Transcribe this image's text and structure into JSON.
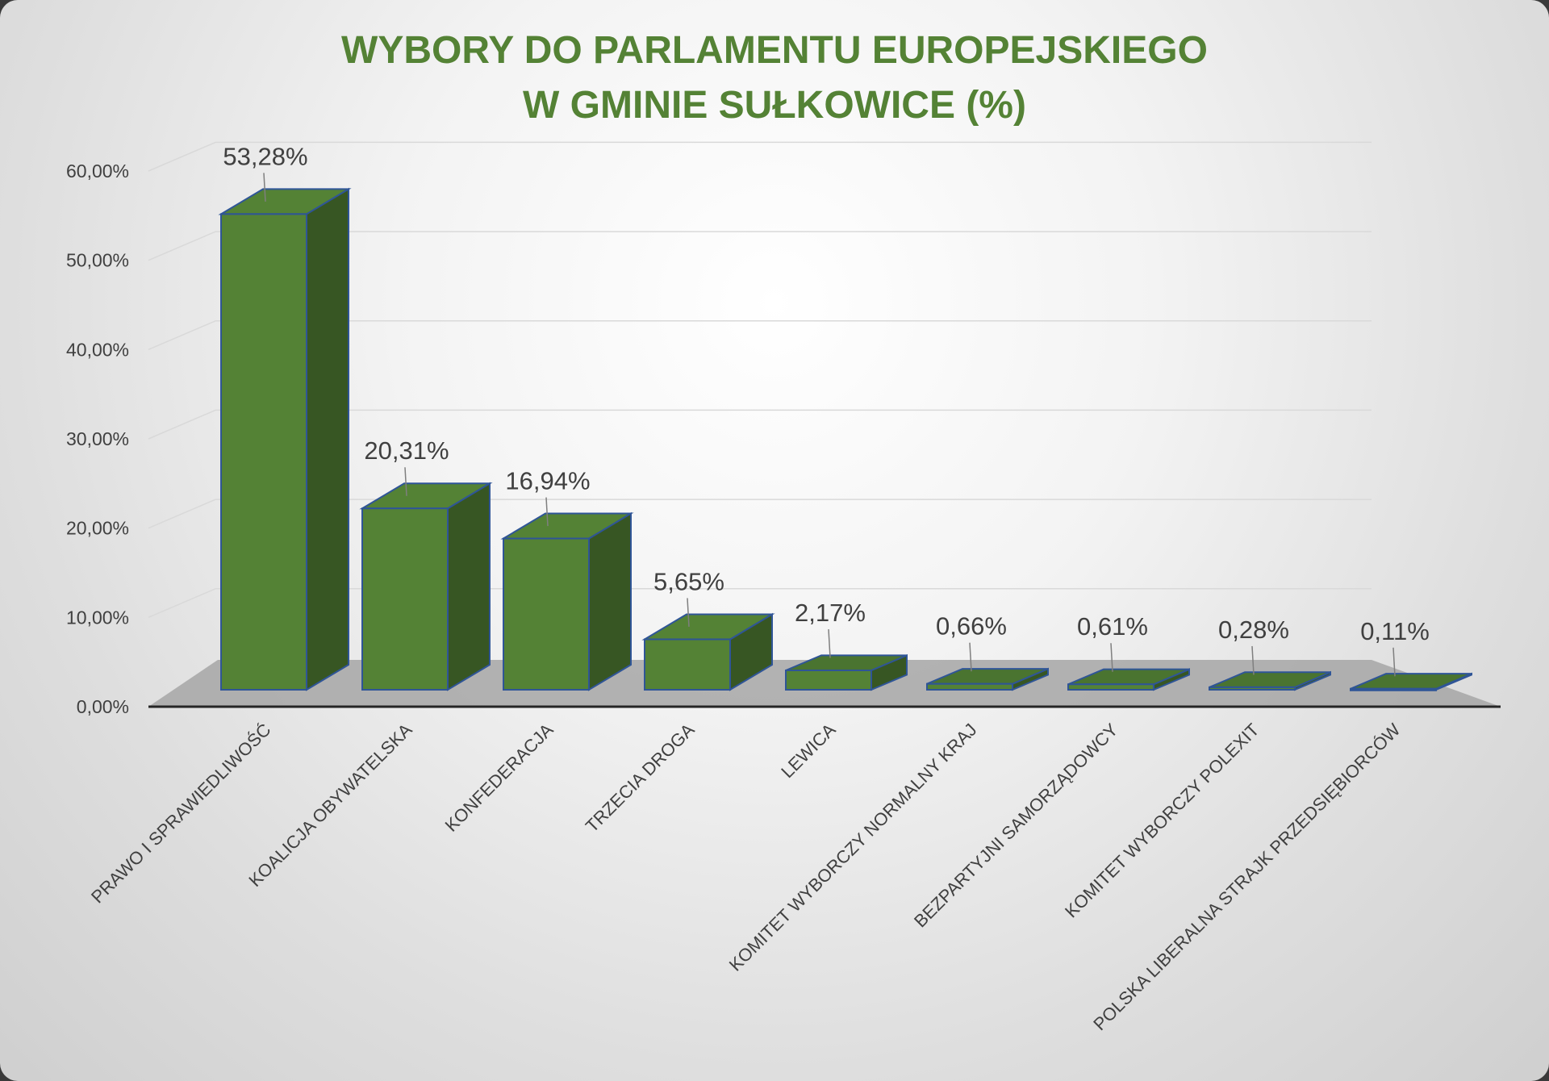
{
  "chart_data": {
    "type": "bar",
    "title": [
      "WYBORY DO PARLAMENTU EUROPEJSKIEGO",
      "W GMINIE SUŁKOWICE (%)"
    ],
    "categories": [
      "PRAWO I SPRAWIEDLIWOŚĆ",
      "KOALICJA OBYWATELSKA",
      "KONFEDERACJA",
      "TRZECIA DROGA",
      "LEWICA",
      "KOMITET WYBORCZY NORMALNY KRAJ",
      "BEZPARTYJNI SAMORZĄDOWCY",
      "KOMITET WYBORCZY POLEXIT",
      "POLSKA LIBERALNA STRAJK PRZEDSIĘBIORCÓW"
    ],
    "values": [
      53.28,
      20.31,
      16.94,
      5.65,
      2.17,
      0.66,
      0.61,
      0.28,
      0.11
    ],
    "data_labels": [
      "53,28%",
      "20,31%",
      "16,94%",
      "5,65%",
      "2,17%",
      "0,66%",
      "0,61%",
      "0,28%",
      "0,11%"
    ],
    "ytick_labels": [
      "0,00%",
      "10,00%",
      "20,00%",
      "30,00%",
      "40,00%",
      "50,00%",
      "60,00%"
    ],
    "ylim": [
      0,
      60
    ],
    "xlabel": "",
    "ylabel": "",
    "grid": true,
    "legend": "none",
    "style": "3d-column",
    "colors": {
      "bar_front": "#548235",
      "bar_side": "#375623",
      "bar_top": "#4a7430",
      "bar_edge": "#2f5597",
      "title": "#548235",
      "floor": "#a6a6a6",
      "grid": "#d9d9d9",
      "text": "#404040"
    }
  }
}
